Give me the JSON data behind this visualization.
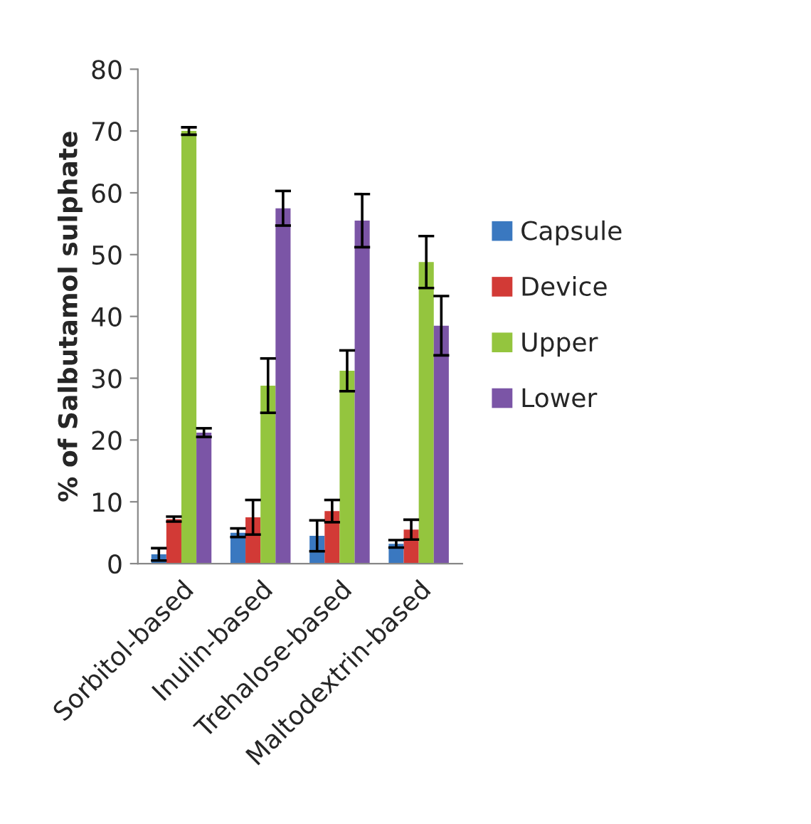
{
  "chart_data": {
    "type": "bar",
    "ylabel": "% of Salbutamol sulphate",
    "categories": [
      "Sorbitol-based",
      "Inulin-based",
      "Trehalose-based",
      "Maltodextrin-based"
    ],
    "series": [
      {
        "name": "Capsule",
        "color": "#3a78c0",
        "values": [
          1.5,
          5.0,
          4.5,
          3.2
        ],
        "errors": [
          1.0,
          0.7,
          2.5,
          0.6
        ]
      },
      {
        "name": "Device",
        "color": "#d23a36",
        "values": [
          7.2,
          7.5,
          8.5,
          5.5
        ],
        "errors": [
          0.4,
          2.8,
          1.8,
          1.6
        ]
      },
      {
        "name": "Upper",
        "color": "#94c53e",
        "values": [
          70,
          28.8,
          31.2,
          48.8
        ],
        "errors": [
          0.6,
          4.4,
          3.3,
          4.2
        ]
      },
      {
        "name": "Lower",
        "color": "#7b55a6",
        "values": [
          21.2,
          57.5,
          55.5,
          38.5
        ],
        "errors": [
          0.7,
          2.8,
          4.3,
          4.8
        ]
      }
    ],
    "ylim": [
      0,
      80
    ],
    "yticks": [
      0,
      10,
      20,
      30,
      40,
      50,
      60,
      70,
      80
    ],
    "grid": false,
    "legend": "right"
  }
}
